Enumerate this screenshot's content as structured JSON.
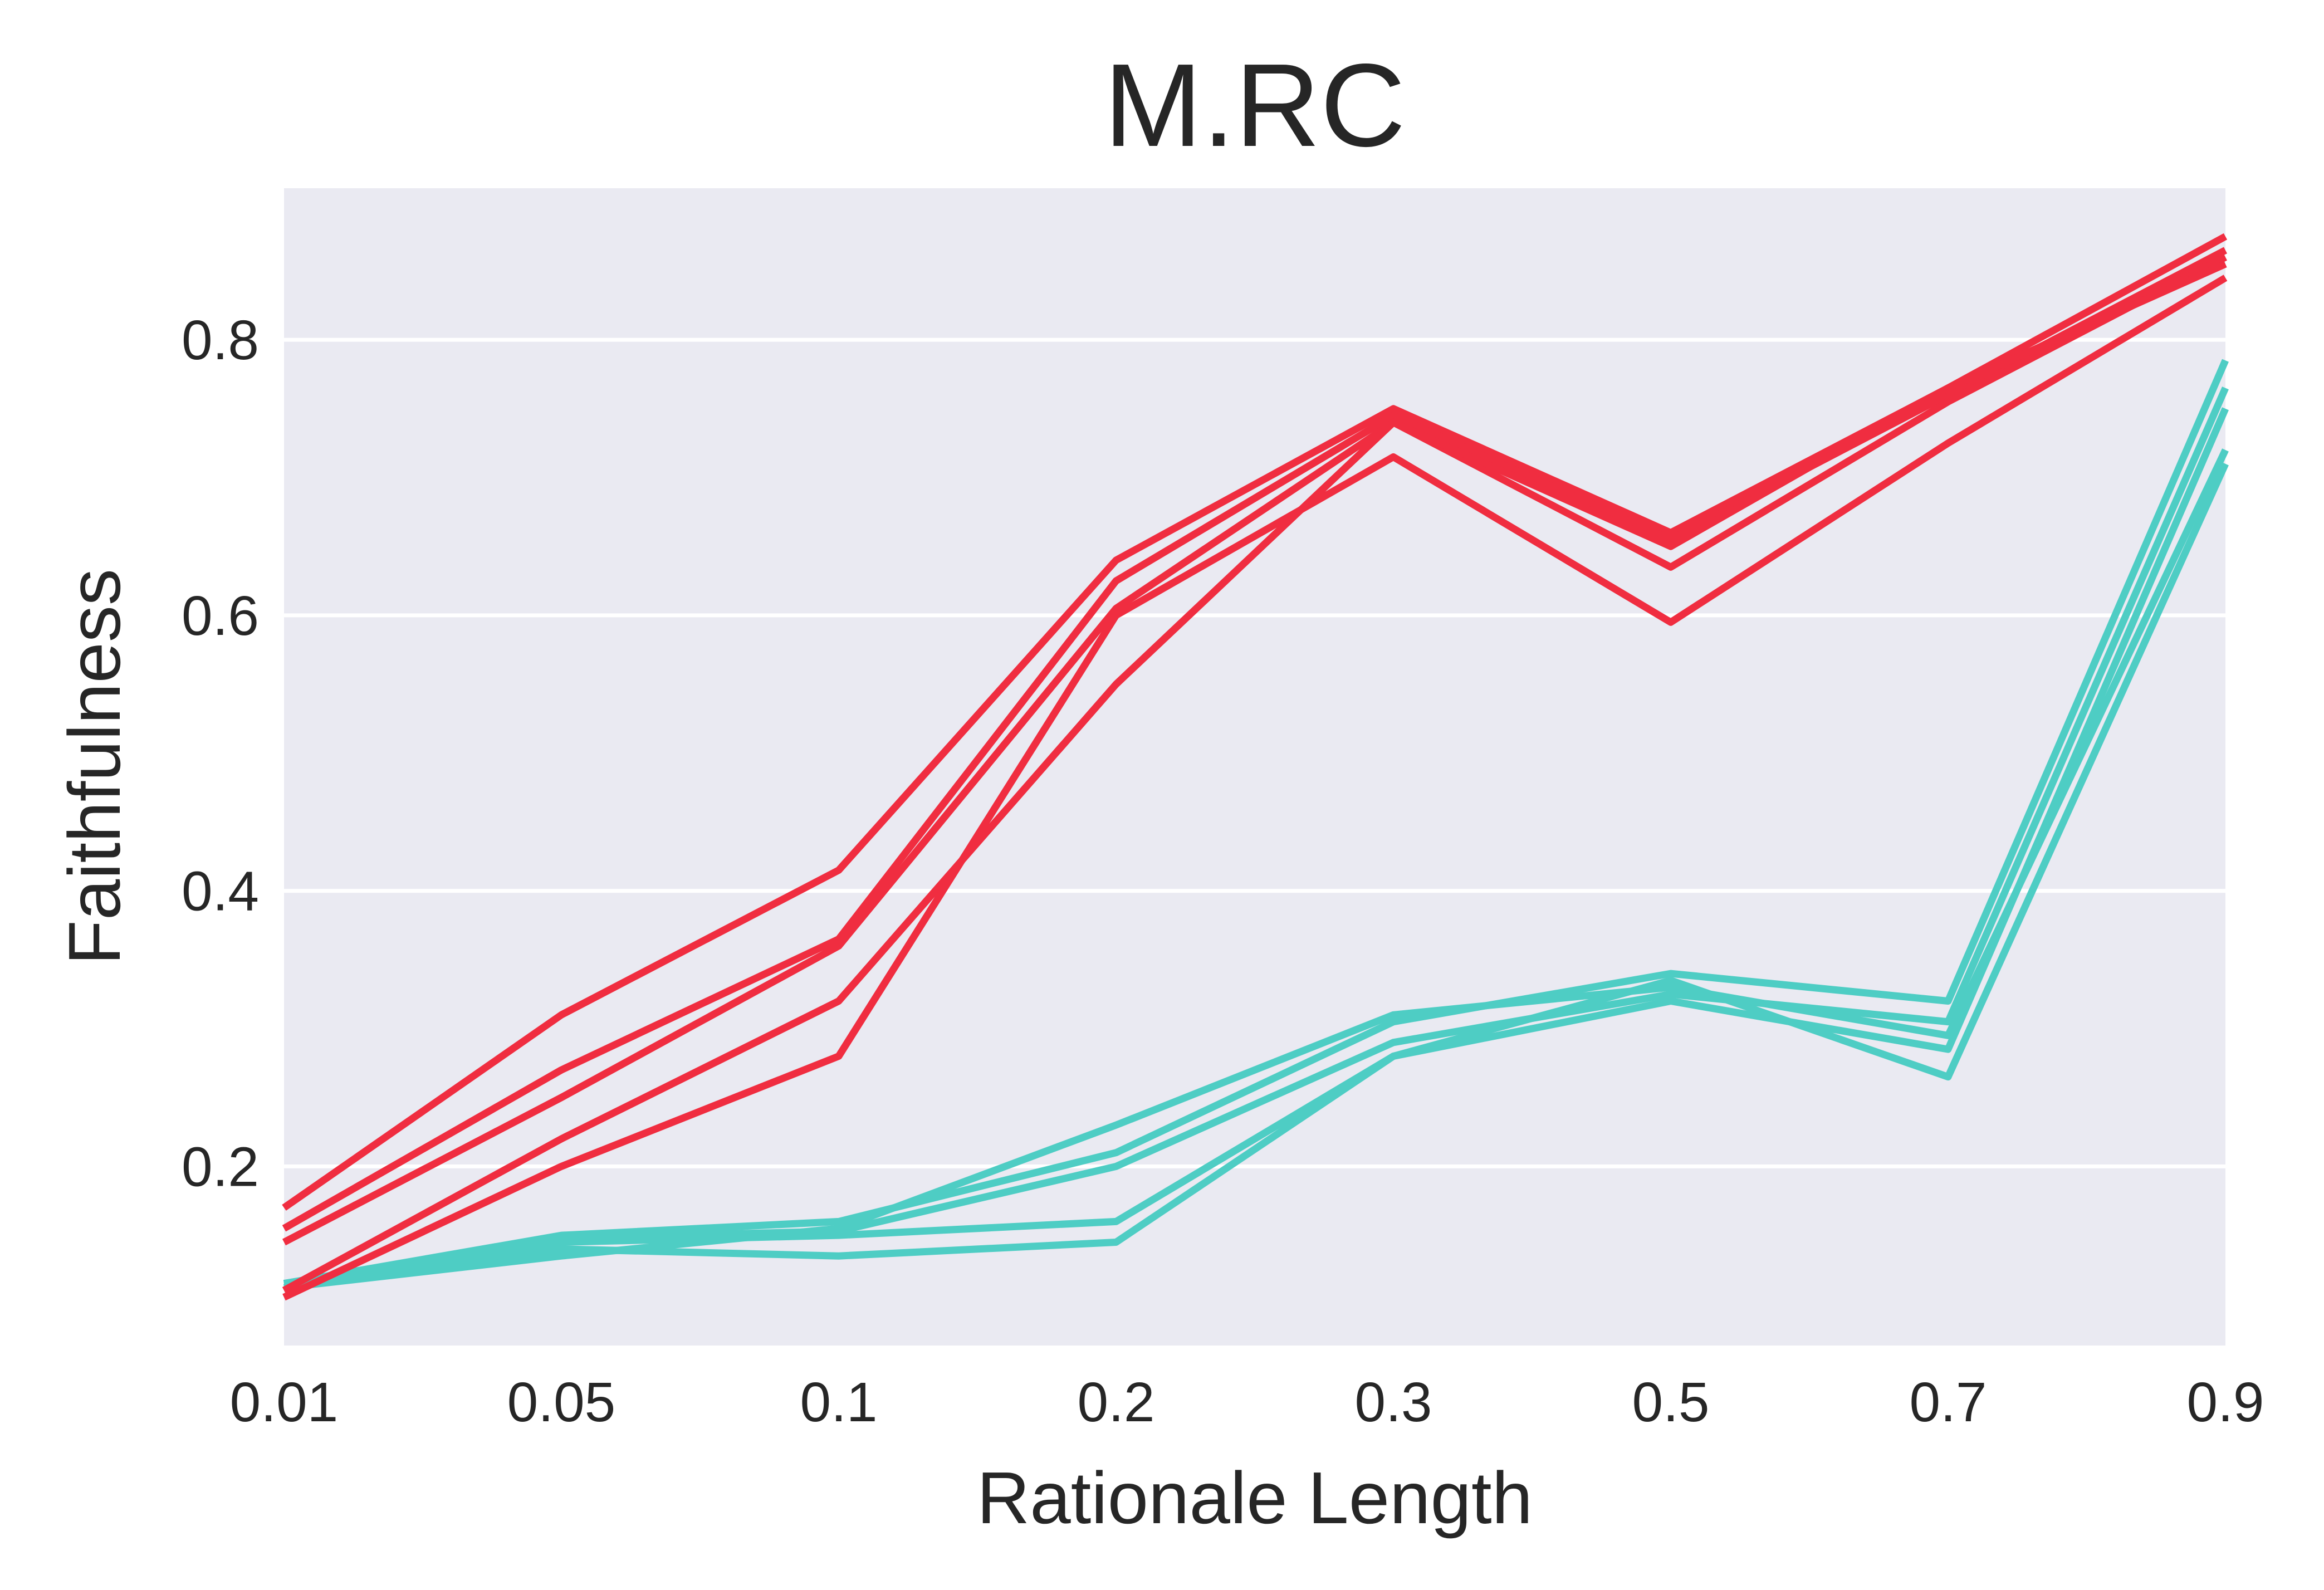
{
  "chart_data": {
    "type": "line",
    "title": "M.RC",
    "xlabel": "Rationale Length",
    "ylabel": "Faithfulness",
    "x_scale": "categorical",
    "categories": [
      "0.01",
      "0.05",
      "0.1",
      "0.2",
      "0.3",
      "0.5",
      "0.7",
      "0.9"
    ],
    "ylim": [
      0.07,
      0.91
    ],
    "yticks": [
      "0.2",
      "0.4",
      "0.6",
      "0.8"
    ],
    "ytick_values": [
      0.2,
      0.4,
      0.6,
      0.8
    ],
    "grid": "horizontal",
    "legend": "none",
    "background_color": "#EAEAF2",
    "grid_color": "#FFFFFF",
    "series": [
      {
        "color": "#F02D40",
        "values": [
          0.17,
          0.31,
          0.415,
          0.64,
          0.75,
          0.66,
          0.765,
          0.875
        ]
      },
      {
        "color": "#F02D40",
        "values": [
          0.155,
          0.27,
          0.365,
          0.625,
          0.745,
          0.655,
          0.76,
          0.865
        ]
      },
      {
        "color": "#F02D40",
        "values": [
          0.145,
          0.25,
          0.36,
          0.605,
          0.74,
          0.635,
          0.755,
          0.86
        ]
      },
      {
        "color": "#F02D40",
        "values": [
          0.11,
          0.22,
          0.32,
          0.55,
          0.74,
          0.65,
          0.765,
          0.855
        ]
      },
      {
        "color": "#F02D40",
        "values": [
          0.105,
          0.2,
          0.28,
          0.6,
          0.715,
          0.595,
          0.725,
          0.845
        ]
      },
      {
        "color": "#4ECDC4",
        "values": [
          0.115,
          0.15,
          0.16,
          0.21,
          0.305,
          0.34,
          0.32,
          0.785
        ]
      },
      {
        "color": "#4ECDC4",
        "values": [
          0.115,
          0.148,
          0.153,
          0.2,
          0.29,
          0.325,
          0.305,
          0.765
        ]
      },
      {
        "color": "#4ECDC4",
        "values": [
          0.115,
          0.145,
          0.15,
          0.16,
          0.28,
          0.32,
          0.285,
          0.75
        ]
      },
      {
        "color": "#4ECDC4",
        "values": [
          0.112,
          0.14,
          0.135,
          0.145,
          0.28,
          0.335,
          0.265,
          0.71
        ]
      },
      {
        "color": "#4ECDC4",
        "values": [
          0.112,
          0.135,
          0.155,
          0.23,
          0.31,
          0.33,
          0.295,
          0.72
        ]
      }
    ]
  }
}
